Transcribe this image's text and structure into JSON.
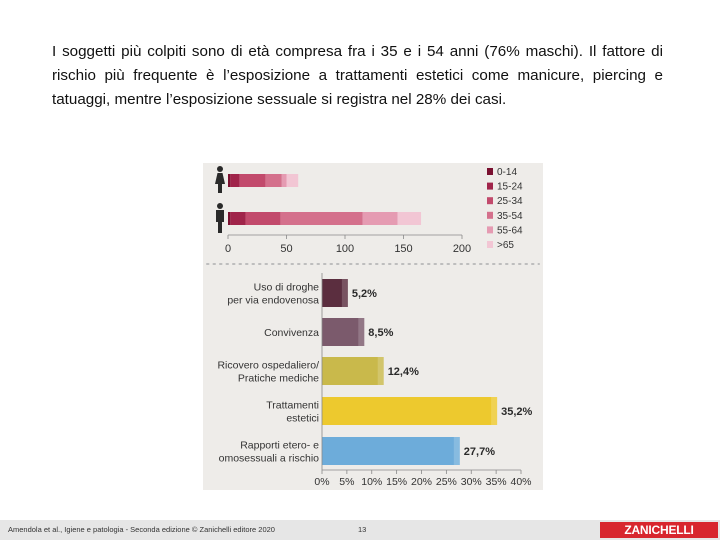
{
  "intro_paragraph": "I soggetti più colpiti sono di età compresa fra i 35 e i 54 anni (76% maschi). Il fattore di rischio più frequente è l’esposizione a trattamenti estetici come manicure, piercing e tatuaggi, mentre l’esposizione sessuale si registra nel 28% dei casi.",
  "colors": {
    "age_groups": [
      "#7a1030",
      "#a0244a",
      "#c24a6c",
      "#d4708c",
      "#e59bb2",
      "#f2c6d4"
    ],
    "risk_bars": [
      "#4a1a2c",
      "#6e4a5e",
      "#c4b43a",
      "#ecc51a",
      "#5ea5d8"
    ],
    "figure_bg": "#eeece9"
  },
  "chart_data": [
    {
      "type": "bar",
      "orientation": "horizontal",
      "stacked": true,
      "categories": [
        "female-icon",
        "male-icon"
      ],
      "x_ticks": [
        "0",
        "50",
        "100",
        "150",
        "200"
      ],
      "xlim": [
        0,
        200
      ],
      "grid": false,
      "legend_position": "right",
      "series": [
        {
          "name": "0-14",
          "values": [
            2,
            2
          ]
        },
        {
          "name": "15-24",
          "values": [
            8,
            13
          ]
        },
        {
          "name": "25-34",
          "values": [
            22,
            30
          ]
        },
        {
          "name": "35-54",
          "values": [
            14,
            70
          ]
        },
        {
          "name": "55-64",
          "values": [
            4,
            30
          ]
        },
        {
          "name": ">65",
          "values": [
            10,
            20
          ]
        }
      ]
    },
    {
      "type": "bar",
      "orientation": "horizontal",
      "categories": [
        [
          "Uso di droghe",
          "per via endovenosa"
        ],
        [
          "Convivenza"
        ],
        [
          "Ricovero ospedaliero/",
          "Pratiche mediche"
        ],
        [
          "Trattamenti",
          "estetici"
        ],
        [
          "Rapporti etero- e",
          "omosessuali a rischio"
        ]
      ],
      "values": [
        5.2,
        8.5,
        12.4,
        35.2,
        27.7
      ],
      "data_labels": [
        "5,2%",
        "8,5%",
        "12,4%",
        "35,2%",
        "27,7%"
      ],
      "x_ticks": [
        "0%",
        "5%",
        "10%",
        "15%",
        "20%",
        "25%",
        "30%",
        "35%",
        "40%"
      ],
      "xlim": [
        0,
        40
      ],
      "grid": false
    }
  ],
  "footer": {
    "credit": "Amendola et al., Igiene e patologia - Seconda edizione © Zanichelli editore 2020",
    "page": "13",
    "publisher": "ZANICHELLI"
  }
}
